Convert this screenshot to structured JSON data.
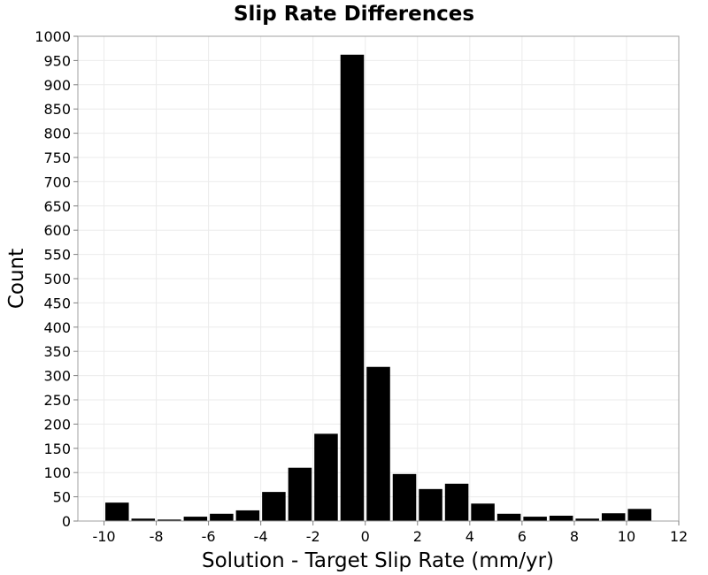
{
  "chart_data": {
    "type": "bar",
    "title": "Slip Rate Differences",
    "xlabel": "Solution - Target Slip Rate (mm/yr)",
    "ylabel": "Count",
    "xlim": [
      -11,
      12
    ],
    "ylim": [
      0,
      1000
    ],
    "xticks": [
      -10,
      -8,
      -6,
      -4,
      -2,
      0,
      2,
      4,
      6,
      8,
      10,
      12
    ],
    "xtick_labels": [
      "-10",
      "-8",
      "-6",
      "-4",
      "-2",
      "0",
      "2",
      "4",
      "6",
      "8",
      "10",
      "12"
    ],
    "yticks": [
      0,
      50,
      100,
      150,
      200,
      250,
      300,
      350,
      400,
      450,
      500,
      550,
      600,
      650,
      700,
      750,
      800,
      850,
      900,
      950,
      1000
    ],
    "ytick_labels": [
      "0",
      "50",
      "100",
      "150",
      "200",
      "250",
      "300",
      "350",
      "400",
      "450",
      "500",
      "550",
      "600",
      "650",
      "700",
      "750",
      "800",
      "850",
      "900",
      "950",
      "1000"
    ],
    "bin_width": 1,
    "x": [
      -9.5,
      -8.5,
      -7.5,
      -6.5,
      -5.5,
      -4.5,
      -3.5,
      -2.5,
      -1.5,
      -0.5,
      0.5,
      1.5,
      2.5,
      3.5,
      4.5,
      5.5,
      6.5,
      7.5,
      8.5,
      9.5,
      10.5
    ],
    "values": [
      38,
      5,
      3,
      9,
      15,
      22,
      60,
      110,
      180,
      962,
      318,
      97,
      66,
      77,
      36,
      15,
      9,
      11,
      5,
      16,
      25
    ],
    "grid": true,
    "bar_color": "#000000",
    "grid_color": "#ebebeb",
    "frame_color": "#a0a0a0",
    "background_color": "#ffffff"
  }
}
